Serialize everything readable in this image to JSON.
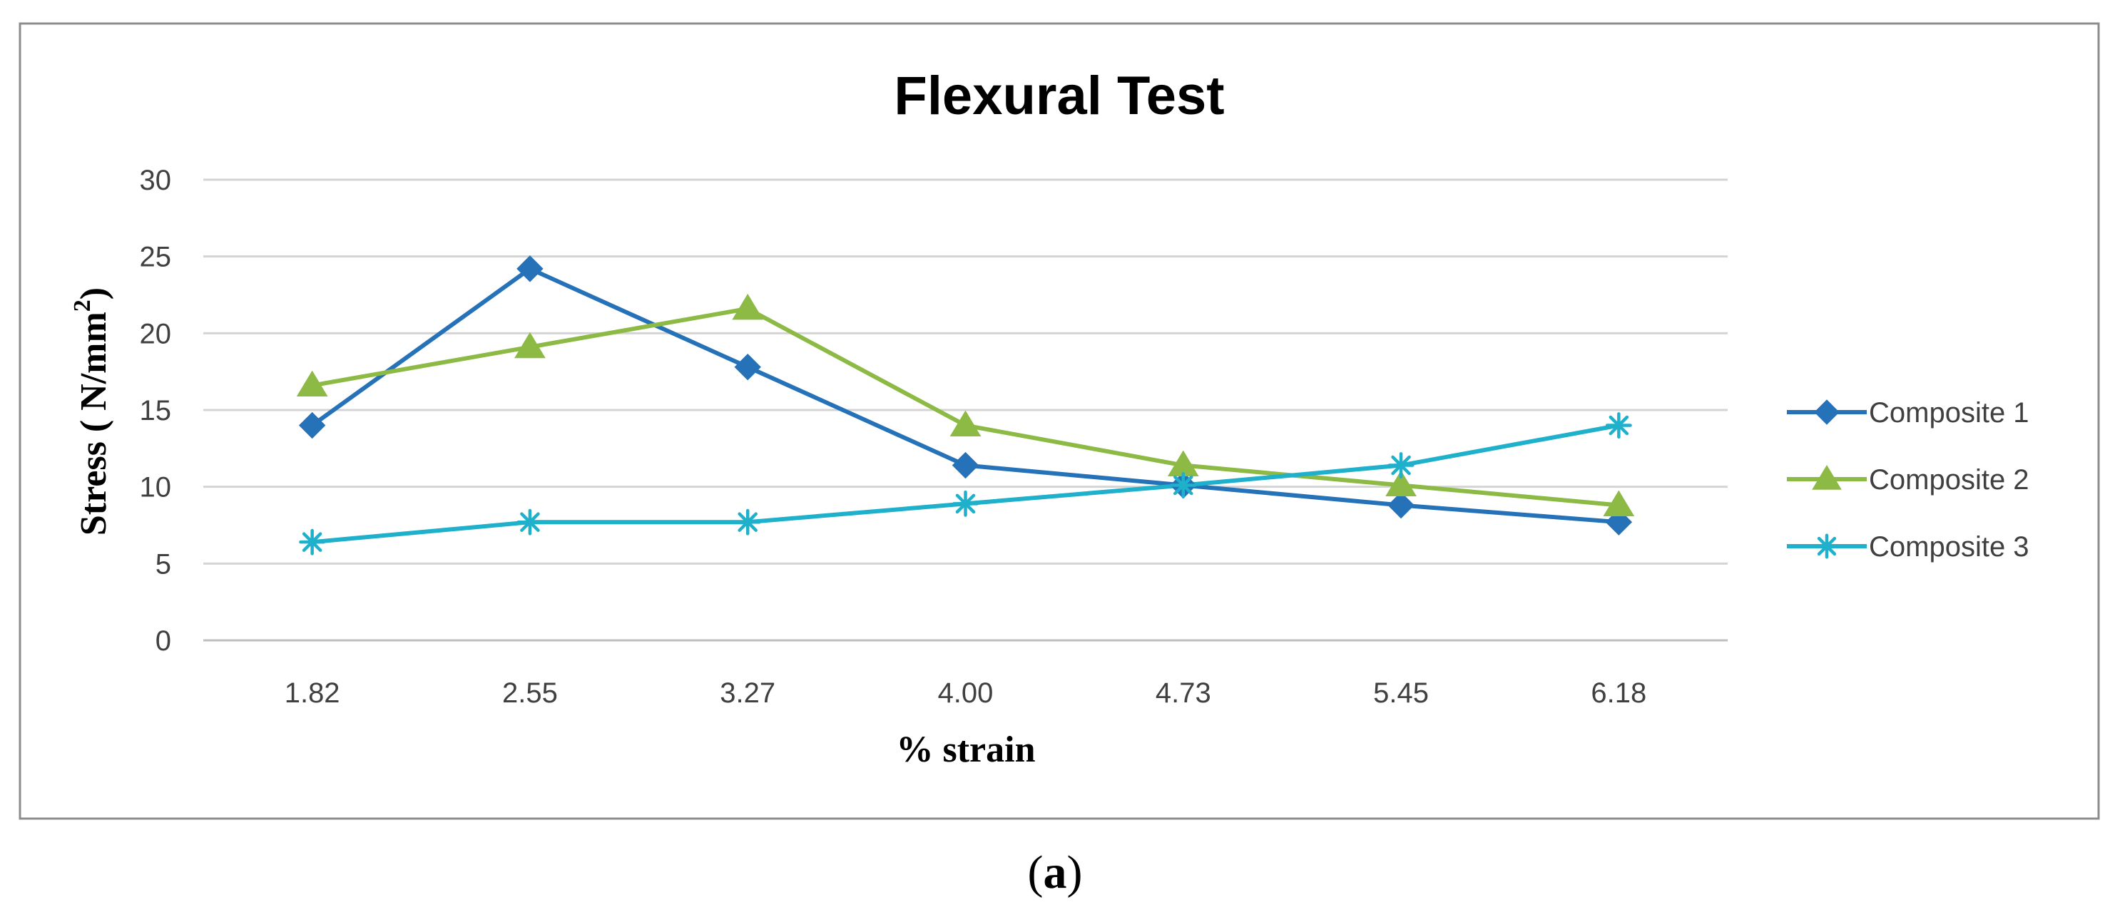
{
  "chart_data": {
    "type": "line",
    "title": "Flexural Test",
    "xlabel": "% strain",
    "ylabel": "Stress ( N/mm",
    "ylabel_superscript": "2",
    "ylabel_suffix": ")",
    "categories": [
      "1.82",
      "2.55",
      "3.27",
      "4.00",
      "4.73",
      "5.45",
      "6.18"
    ],
    "ylim": [
      0,
      30
    ],
    "yticks": [
      "0",
      "5",
      "10",
      "15",
      "20",
      "25",
      "30"
    ],
    "grid": true,
    "legend_position": "right",
    "series": [
      {
        "name": "Composite 1",
        "marker": "diamond",
        "color": "#2672b8",
        "values": [
          14.0,
          24.2,
          17.8,
          11.4,
          10.1,
          8.8,
          7.7
        ]
      },
      {
        "name": "Composite 2",
        "marker": "triangle",
        "color": "#8dba45",
        "values": [
          16.6,
          19.1,
          21.6,
          14.0,
          11.4,
          10.1,
          8.8
        ]
      },
      {
        "name": "Composite 3",
        "marker": "asterisk",
        "color": "#1fb0cb",
        "values": [
          6.4,
          7.7,
          7.7,
          8.9,
          10.1,
          11.4,
          14.0
        ]
      }
    ]
  },
  "caption": {
    "open": "(",
    "letter": "a",
    "close": ")"
  }
}
